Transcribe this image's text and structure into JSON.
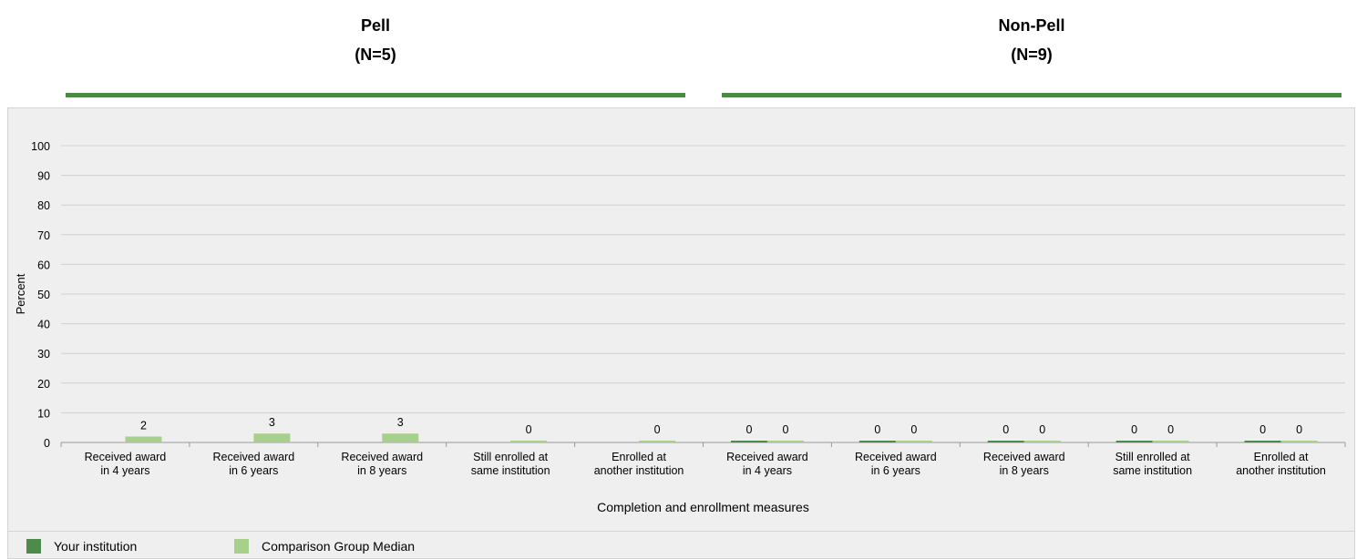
{
  "groups": [
    {
      "title": "Pell",
      "n": "(N=5)"
    },
    {
      "title": "Non-Pell",
      "n": "(N=9)"
    }
  ],
  "legend": [
    {
      "label": "Your institution",
      "color": "#4e8a4a"
    },
    {
      "label": "Comparison Group Median",
      "color": "#a8d08d"
    }
  ],
  "chart_data": {
    "type": "bar",
    "ylabel": "Percent",
    "xlabel": "Completion and enrollment measures",
    "ylim": [
      0,
      100
    ],
    "yticks": [
      0,
      10,
      20,
      30,
      40,
      50,
      60,
      70,
      80,
      90,
      100
    ],
    "grid": true,
    "legend_position": "bottom",
    "categories": [
      [
        "Received award",
        "in 4 years"
      ],
      [
        "Received award",
        "in 6 years"
      ],
      [
        "Received award",
        "in 8 years"
      ],
      [
        "Still enrolled at",
        "same institution"
      ],
      [
        "Enrolled at",
        "another institution"
      ],
      [
        "Received award",
        "in 4 years"
      ],
      [
        "Received award",
        "in 6 years"
      ],
      [
        "Received award",
        "in 8 years"
      ],
      [
        "Still enrolled at",
        "same institution"
      ],
      [
        "Enrolled at",
        "another institution"
      ]
    ],
    "series": [
      {
        "name": "Your institution",
        "color": "#4e8a4a",
        "values": [
          null,
          null,
          null,
          null,
          null,
          0,
          0,
          0,
          0,
          0
        ],
        "labels": [
          "",
          "",
          "",
          "",
          "",
          "0",
          "0",
          "0",
          "0",
          "0"
        ]
      },
      {
        "name": "Comparison Group Median",
        "color": "#a8d08d",
        "values": [
          2,
          3,
          3,
          0,
          0,
          0,
          0,
          0,
          0,
          0
        ],
        "labels": [
          "2",
          "3",
          "3",
          "0",
          "0",
          "0",
          "0",
          "0",
          "0",
          "0"
        ]
      }
    ]
  }
}
